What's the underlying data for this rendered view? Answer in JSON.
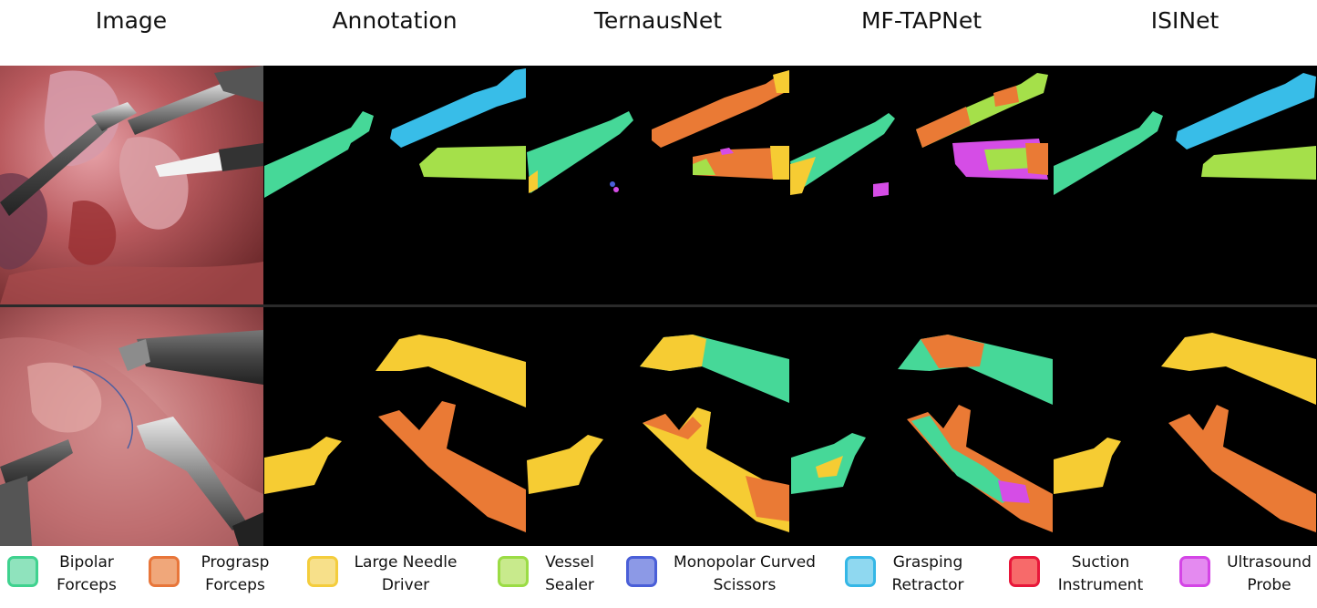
{
  "columns": [
    "Image",
    "Annotation",
    "TernausNet",
    "MF-TAPNet",
    "ISINet"
  ],
  "legend": [
    {
      "line1": "Bipolar",
      "line2": "Forceps",
      "fill": "#8fe3bd",
      "border": "#3fd28f",
      "icon": "bipolar-forceps-swatch"
    },
    {
      "line1": "Prograsp",
      "line2": "Forceps",
      "fill": "#f0a77a",
      "border": "#e8763a",
      "icon": "prograsp-forceps-swatch"
    },
    {
      "line1": "Large Needle",
      "line2": "Driver",
      "fill": "#f7e08a",
      "border": "#f4cd3d",
      "icon": "large-needle-driver-swatch"
    },
    {
      "line1": "Vessel",
      "line2": "Sealer",
      "fill": "#c8ea8c",
      "border": "#9bdc45",
      "icon": "vessel-sealer-swatch"
    },
    {
      "line1": "Monopolar Curved",
      "line2": "Scissors",
      "fill": "#8c99e6",
      "border": "#4a5fd8",
      "icon": "monopolar-curved-scissors-swatch"
    },
    {
      "line1": "Grasping",
      "line2": "Retractor",
      "fill": "#8fd8f0",
      "border": "#35b7e6",
      "icon": "grasping-retractor-swatch"
    },
    {
      "line1": "Suction",
      "line2": "Instrument",
      "fill": "#f76a6a",
      "border": "#e8173a",
      "icon": "suction-instrument-swatch"
    },
    {
      "line1": "Ultrasound",
      "line2": "Probe",
      "fill": "#e48af0",
      "border": "#d445e6",
      "icon": "ultrasound-probe-swatch"
    }
  ],
  "colors": {
    "bipolar": "#46d898",
    "prograsp": "#ea7a35",
    "needle": "#f6cc33",
    "sealer": "#a5e04a",
    "scissors": "#4a5fd8",
    "retractor": "#38bde8",
    "suction": "#e8173a",
    "ultrasound": "#d54de6",
    "tissue": "#b65a5a",
    "black": "#000000"
  }
}
